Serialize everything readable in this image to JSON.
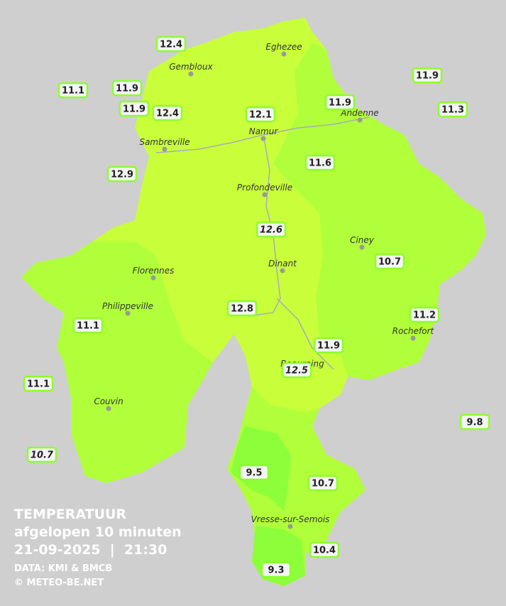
{
  "title": {
    "line1": "TEMPERATUUR",
    "line2": "afgelopen 10 minuten",
    "line3": "21-09-2025  |  21:30",
    "source": "DATA: KMI & BMCB",
    "copyright": "© METEO-BE.NET"
  },
  "cities": [
    "Eghezee",
    "Gembloux",
    "Andenne",
    "Namur",
    "Sambreville",
    "Profondeville",
    "Ciney",
    "Dinant",
    "Florennes",
    "Philippeville",
    "Rochefort",
    "Beauraing",
    "Couvin",
    "Vresse-sur-Semois"
  ],
  "stations": [
    {
      "value": 12.4
    },
    {
      "value": 11.9
    },
    {
      "value": 11.1
    },
    {
      "value": 11.9
    },
    {
      "value": 12.4
    },
    {
      "value": 12.1
    },
    {
      "value": 11.9
    },
    {
      "value": 11.9
    },
    {
      "value": 11.3
    },
    {
      "value": 12.9
    },
    {
      "value": 11.6
    },
    {
      "value": 12.6,
      "italic": true
    },
    {
      "value": 10.7
    },
    {
      "value": 12.8
    },
    {
      "value": 11.2
    },
    {
      "value": 11.1
    },
    {
      "value": 11.9
    },
    {
      "value": 12.5,
      "italic": true
    },
    {
      "value": 11.1
    },
    {
      "value": 9.8
    },
    {
      "value": 10.7,
      "italic": true
    },
    {
      "value": 9.5
    },
    {
      "value": 10.7
    },
    {
      "value": 10.4
    },
    {
      "value": 9.3
    }
  ]
}
